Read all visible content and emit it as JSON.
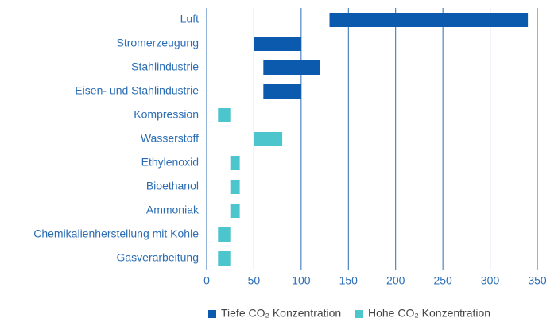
{
  "chart_data": {
    "type": "range-bar",
    "categories": [
      "Luft",
      "Stromerzeugung",
      "Stahlindustrie",
      "Eisen- und Stahlindustrie",
      "Kompression",
      "Wasserstoff",
      "Ethylenoxid",
      "Bioethanol",
      "Ammoniak",
      "Chemikalienherstellung mit Kohle",
      "Gasverarbeitung"
    ],
    "series": [
      {
        "name": "Tiefe CO₂ Konzentration",
        "color": "#0b5aad",
        "low": [
          130,
          50,
          60,
          60,
          null,
          null,
          null,
          null,
          null,
          null,
          null
        ],
        "high": [
          340,
          100,
          120,
          100,
          null,
          null,
          null,
          null,
          null,
          null,
          null
        ]
      },
      {
        "name": "Hohe CO₂ Konzentration",
        "color": "#4dc5cc",
        "low": [
          null,
          null,
          null,
          null,
          12,
          50,
          25,
          25,
          25,
          12,
          12
        ],
        "high": [
          null,
          null,
          null,
          null,
          25,
          80,
          35,
          35,
          35,
          25,
          25
        ]
      }
    ],
    "xlim": [
      0,
      350
    ],
    "xticks": [
      0,
      50,
      100,
      150,
      200,
      250,
      300,
      350
    ],
    "grid": true
  }
}
